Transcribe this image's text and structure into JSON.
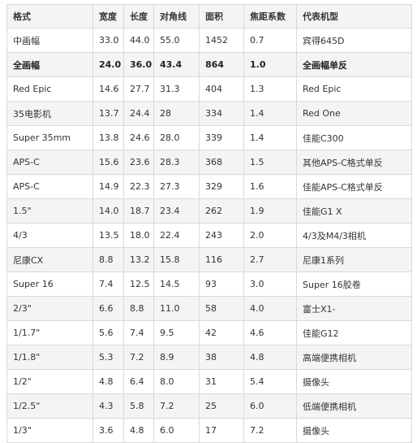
{
  "table": {
    "headers": [
      "格式",
      "宽度",
      "长度",
      "对角线",
      "面积",
      "焦距系数",
      "代表机型"
    ],
    "bold_row_index": 1,
    "rows": [
      [
        "中画幅",
        "33.0",
        "44.0",
        "55.0",
        "1452",
        "0.7",
        "宾得645D"
      ],
      [
        "全画幅",
        "24.0",
        "36.0",
        "43.4",
        "864",
        "1.0",
        "全画幅单反"
      ],
      [
        "Red Epic",
        "14.6",
        "27.7",
        "31.3",
        "404",
        "1.3",
        "Red Epic"
      ],
      [
        "35电影机",
        "13.7",
        "24.4",
        "28",
        "334",
        "1.4",
        "Red One"
      ],
      [
        "Super 35mm",
        "13.8",
        "24.6",
        "28.0",
        "339",
        "1.4",
        "佳能C300"
      ],
      [
        "APS-C",
        "15.6",
        "23.6",
        "28.3",
        "368",
        "1.5",
        "其他APS-C格式单反"
      ],
      [
        "APS-C",
        "14.9",
        "22.3",
        "27.3",
        "329",
        "1.6",
        "佳能APS-C格式单反"
      ],
      [
        "1.5\"",
        "14.0",
        "18.7",
        "23.4",
        "262",
        "1.9",
        "佳能G1 X"
      ],
      [
        "4/3",
        "13.5",
        "18.0",
        "22.4",
        "243",
        "2.0",
        "4/3及M4/3相机"
      ],
      [
        "尼康CX",
        "8.8",
        "13.2",
        "15.8",
        "116",
        "2.7",
        "尼康1系列"
      ],
      [
        "Super 16",
        "7.4",
        "12.5",
        "14.5",
        "93",
        "3.0",
        "Super 16胶卷"
      ],
      [
        "2/3\"",
        "6.6",
        "8.8",
        "11.0",
        "58",
        "4.0",
        "富士X1-"
      ],
      [
        "1/1.7\"",
        "5.6",
        "7.4",
        "9.5",
        "42",
        "4.6",
        "佳能G12"
      ],
      [
        "1/1.8\"",
        "5.3",
        "7.2",
        "8.9",
        "38",
        "4.8",
        "高端便携相机"
      ],
      [
        "1/2\"",
        "4.8",
        "6.4",
        "8.0",
        "31",
        "5.4",
        "摄像头"
      ],
      [
        "1/2.5\"",
        "4.3",
        "5.8",
        "7.2",
        "25",
        "6.0",
        "低端便携相机"
      ],
      [
        "1/3\"",
        "3.6",
        "4.8",
        "6.0",
        "17",
        "7.2",
        "摄像头"
      ]
    ]
  }
}
